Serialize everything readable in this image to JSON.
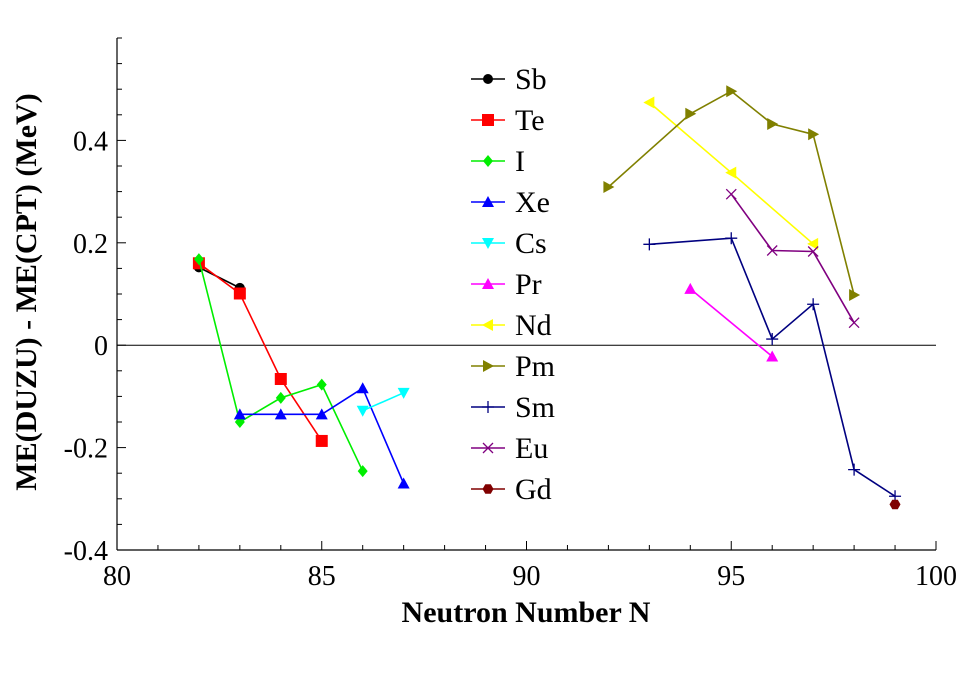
{
  "chart_data": {
    "type": "line",
    "title": "",
    "xlabel": "Neutron Number N",
    "ylabel": "ME(DUZU) - ME(CPT) (MeV)",
    "xlim": [
      80,
      100
    ],
    "ylim": [
      -0.4,
      0.6
    ],
    "x_ticks": [
      80,
      85,
      90,
      95,
      100
    ],
    "x_tick_labels": [
      "80",
      "85",
      "90",
      "95",
      "100"
    ],
    "y_ticks": [
      -0.4,
      -0.2,
      0,
      0.2,
      0.4
    ],
    "y_tick_labels": [
      "-0.4",
      "-0.2",
      "0",
      "0.2",
      "0.4"
    ],
    "zero_line": 0,
    "grid": false,
    "legend_position": "top-center",
    "series": [
      {
        "name": "Sb",
        "color": "#000000",
        "marker": "circle",
        "x": [
          82,
          83
        ],
        "y": [
          0.152,
          0.112
        ]
      },
      {
        "name": "Te",
        "color": "#ff0000",
        "marker": "square",
        "x": [
          82,
          83,
          84,
          85
        ],
        "y": [
          0.16,
          0.101,
          -0.066,
          -0.187
        ]
      },
      {
        "name": "I",
        "color": "#00ee00",
        "marker": "diamond",
        "x": [
          82,
          83,
          84,
          85,
          86
        ],
        "y": [
          0.168,
          -0.15,
          -0.103,
          -0.077,
          -0.246
        ]
      },
      {
        "name": "Xe",
        "color": "#0000ff",
        "marker": "triangle-up",
        "x": [
          83,
          84,
          85,
          86,
          87
        ],
        "y": [
          -0.135,
          -0.135,
          -0.135,
          -0.084,
          -0.27
        ]
      },
      {
        "name": "Cs",
        "color": "#00ffff",
        "marker": "triangle-down",
        "x": [
          86,
          87
        ],
        "y": [
          -0.128,
          -0.093
        ]
      },
      {
        "name": "Pr",
        "color": "#ff00ff",
        "marker": "triangle-up",
        "x": [
          94,
          96
        ],
        "y": [
          0.11,
          -0.022
        ]
      },
      {
        "name": "Nd",
        "color": "#ffff00",
        "marker": "triangle-left",
        "x": [
          93,
          95,
          97
        ],
        "y": [
          0.474,
          0.337,
          0.198
        ]
      },
      {
        "name": "Pm",
        "color": "#808000",
        "marker": "triangle-right",
        "x": [
          92,
          94,
          95,
          96,
          97,
          98
        ],
        "y": [
          0.309,
          0.452,
          0.496,
          0.432,
          0.412,
          0.098
        ]
      },
      {
        "name": "Sm",
        "color": "#000080",
        "marker": "plus",
        "x": [
          93,
          95,
          96,
          97,
          98,
          99
        ],
        "y": [
          0.197,
          0.209,
          0.012,
          0.08,
          -0.243,
          -0.295
        ]
      },
      {
        "name": "Eu",
        "color": "#800080",
        "marker": "cross",
        "x": [
          95,
          96,
          97,
          98
        ],
        "y": [
          0.295,
          0.185,
          0.183,
          0.044
        ]
      },
      {
        "name": "Gd",
        "color": "#800000",
        "marker": "hexagon",
        "x": [
          99
        ],
        "y": [
          -0.311
        ]
      }
    ]
  }
}
